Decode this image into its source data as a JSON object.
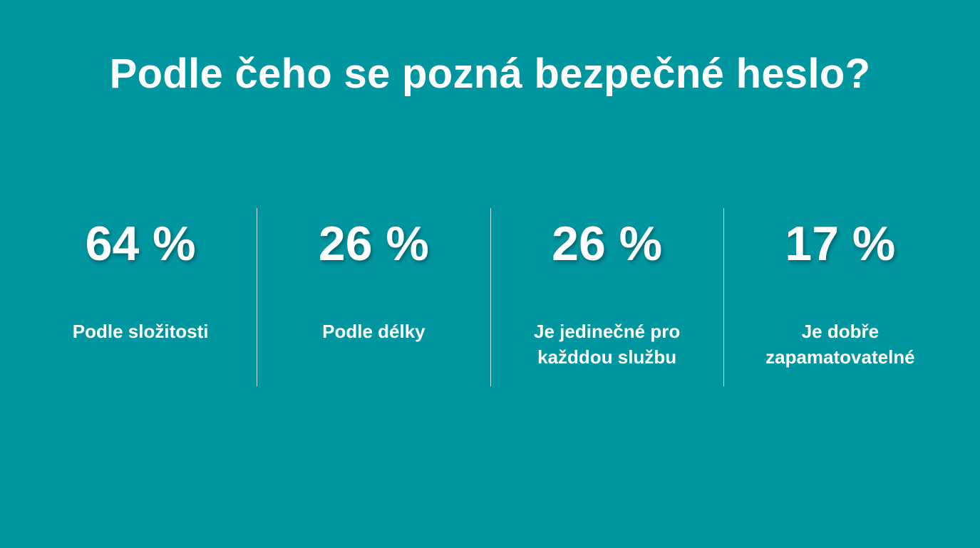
{
  "slide": {
    "title": "Podle čeho se pozná bezpečné heslo?",
    "background_color": "#0096a0",
    "text_color": "#ffffff",
    "stats": [
      {
        "value": "64 %",
        "label_lines": [
          "Podle složitosti"
        ]
      },
      {
        "value": "26 %",
        "label_lines": [
          "Podle délky"
        ]
      },
      {
        "value": "26 %",
        "label_lines": [
          "Je jedinečné pro",
          "každdou službu"
        ]
      },
      {
        "value": "17 %",
        "label_lines": [
          "Je dobře",
          "zapamatovatelné"
        ]
      }
    ]
  }
}
